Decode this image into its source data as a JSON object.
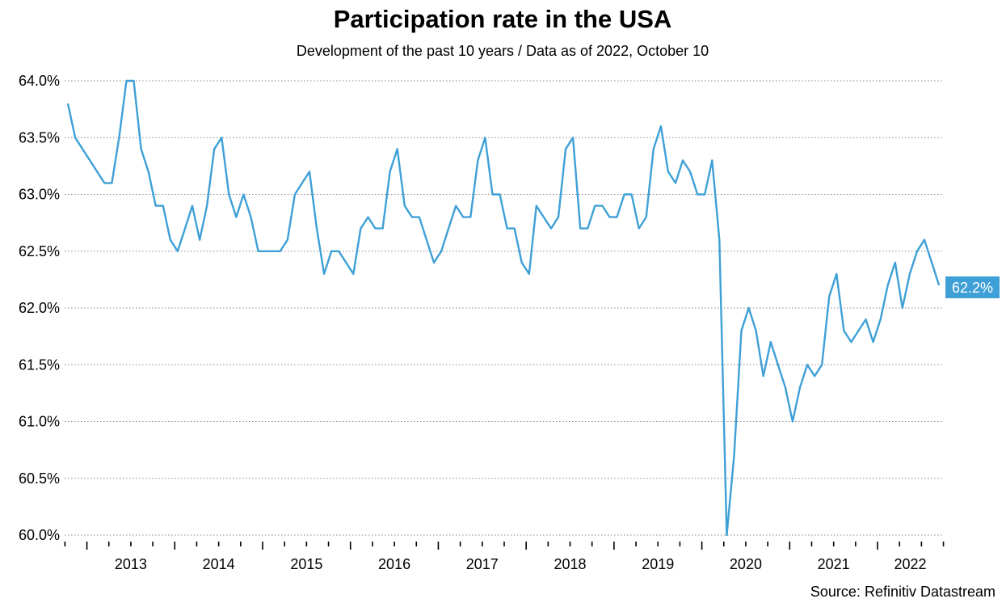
{
  "chart_data": {
    "type": "line",
    "title": "Participation rate in the USA",
    "subtitle": "Development of the past 10 years / Data as of 2022, October 10",
    "source": "Source: Refinitiv Datastream",
    "xlabel": "",
    "ylabel": "",
    "ylim": [
      60.0,
      64.0
    ],
    "y_ticks": [
      "60.0%",
      "60.5%",
      "61.0%",
      "61.5%",
      "62.0%",
      "62.5%",
      "63.0%",
      "63.5%",
      "64.0%"
    ],
    "x_ticks": [
      "2013",
      "2014",
      "2015",
      "2016",
      "2017",
      "2018",
      "2019",
      "2020",
      "2021",
      "2022"
    ],
    "grid": "horizontal dotted",
    "line_color": "#3ea0d6",
    "last_value_label": "62.2%",
    "x_start": "2012-10",
    "x_end": "2022-09",
    "x_frequency": "monthly",
    "values": [
      63.8,
      63.5,
      63.4,
      63.3,
      63.2,
      63.1,
      63.1,
      63.5,
      64.0,
      64.0,
      63.4,
      63.2,
      62.9,
      62.9,
      62.6,
      62.5,
      62.7,
      62.9,
      62.6,
      62.9,
      63.4,
      63.5,
      63.0,
      62.8,
      63.0,
      62.8,
      62.5,
      62.5,
      62.5,
      62.5,
      62.6,
      63.0,
      63.1,
      63.2,
      62.7,
      62.3,
      62.5,
      62.5,
      62.4,
      62.3,
      62.7,
      62.8,
      62.7,
      62.7,
      63.2,
      63.4,
      62.9,
      62.8,
      62.8,
      62.6,
      62.4,
      62.5,
      62.7,
      62.9,
      62.8,
      62.8,
      63.3,
      63.5,
      63.0,
      63.0,
      62.7,
      62.7,
      62.4,
      62.3,
      62.9,
      62.8,
      62.7,
      62.8,
      63.4,
      63.5,
      62.7,
      62.7,
      62.9,
      62.9,
      62.8,
      62.8,
      63.0,
      63.0,
      62.7,
      62.8,
      63.4,
      63.6,
      63.2,
      63.1,
      63.3,
      63.2,
      63.0,
      63.0,
      63.3,
      62.6,
      60.0,
      60.7,
      61.8,
      62.0,
      61.8,
      61.4,
      61.7,
      61.5,
      61.3,
      61.0,
      61.3,
      61.5,
      61.4,
      61.5,
      62.1,
      62.3,
      61.8,
      61.7,
      61.8,
      61.9,
      61.7,
      61.9,
      62.2,
      62.4,
      62.0,
      62.3,
      62.5,
      62.6,
      62.4,
      62.2
    ]
  }
}
